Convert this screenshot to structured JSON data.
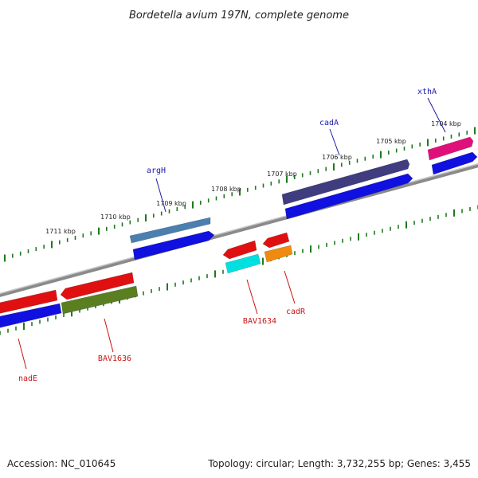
{
  "title": "Bordetella avium 197N, complete genome",
  "footer": {
    "accession": "Accession: NC_010645",
    "summary": "Topology: circular; Length: 3,732,255 bp; Genes: 3,455"
  },
  "colors": {
    "backbone": "#8a8a8a",
    "ticks": "#1f7a1f",
    "forward_label": "#1a1aa8",
    "reverse_label": "#cc1111"
  },
  "scale_labels": [
    {
      "id": "kbp-1711",
      "text": "1711 kbp"
    },
    {
      "id": "kbp-1710",
      "text": "1710 kbp"
    },
    {
      "id": "kbp-1709",
      "text": "1709 kbp"
    },
    {
      "id": "kbp-1708",
      "text": "1708 kbp"
    },
    {
      "id": "kbp-1707",
      "text": "1707 kbp"
    },
    {
      "id": "kbp-1706",
      "text": "1706 kbp"
    },
    {
      "id": "kbp-1705",
      "text": "1705 kbp"
    },
    {
      "id": "kbp-1704",
      "text": "1704 kbp"
    }
  ],
  "gene_labels": [
    {
      "id": "argH",
      "text": "argH",
      "strand": "forward"
    },
    {
      "id": "cadA",
      "text": "cadA",
      "strand": "forward"
    },
    {
      "id": "xthA",
      "text": "xthA",
      "strand": "forward"
    },
    {
      "id": "nadE",
      "text": "nadE",
      "strand": "reverse"
    },
    {
      "id": "BAV1636",
      "text": "BAV1636",
      "strand": "reverse"
    },
    {
      "id": "BAV1634",
      "text": "BAV1634",
      "strand": "reverse"
    },
    {
      "id": "cadR",
      "text": "cadR",
      "strand": "reverse"
    }
  ],
  "features": [
    {
      "id": "argH",
      "color": "#4a7fb0",
      "strand": "forward"
    },
    {
      "id": "argH-cds",
      "color": "#1010e0",
      "strand": "forward"
    },
    {
      "id": "cadA",
      "color": "#403c80",
      "strand": "forward"
    },
    {
      "id": "cadA-cds",
      "color": "#1010e0",
      "strand": "forward"
    },
    {
      "id": "xthA",
      "color": "#e0107a",
      "strand": "forward"
    },
    {
      "id": "xthA-cds",
      "color": "#1010e0",
      "strand": "forward"
    },
    {
      "id": "nadE",
      "color": "#e01010",
      "strand": "reverse"
    },
    {
      "id": "nadE-cds",
      "color": "#1010e0",
      "strand": "reverse"
    },
    {
      "id": "BAV1636",
      "color": "#e01010",
      "strand": "reverse"
    },
    {
      "id": "BAV1636-cds",
      "color": "#5a7f20",
      "strand": "reverse"
    },
    {
      "id": "BAV1634",
      "color": "#e01010",
      "strand": "reverse"
    },
    {
      "id": "BAV1634-cds",
      "color": "#00e0e0",
      "strand": "reverse"
    },
    {
      "id": "cadR",
      "color": "#e01010",
      "strand": "reverse"
    },
    {
      "id": "cadR-cds",
      "color": "#f08a10",
      "strand": "reverse"
    }
  ]
}
